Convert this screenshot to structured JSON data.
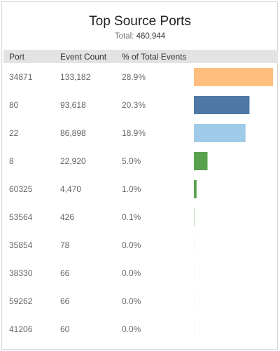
{
  "title": "Top Source Ports",
  "subtitle": {
    "label": "Total:",
    "value": "460,944"
  },
  "columns": [
    "Port",
    "Event Count",
    "% of Total Events"
  ],
  "chart_data": {
    "type": "bar",
    "title": "Top Source Ports",
    "total": 460944,
    "rows": [
      {
        "port": "34871",
        "count": "133,182",
        "pct_text": "28.9%",
        "value": 133182,
        "color": "#ffbe7d"
      },
      {
        "port": "80",
        "count": "93,618",
        "pct_text": "20.3%",
        "value": 93618,
        "color": "#4e79a7"
      },
      {
        "port": "22",
        "count": "86,898",
        "pct_text": "18.9%",
        "value": 86898,
        "color": "#a0cbe8"
      },
      {
        "port": "8",
        "count": "22,920",
        "pct_text": "5.0%",
        "value": 22920,
        "color": "#59a14f"
      },
      {
        "port": "60325",
        "count": "4,470",
        "pct_text": "1.0%",
        "value": 4470,
        "color": "#59a14f"
      },
      {
        "port": "53564",
        "count": "426",
        "pct_text": "0.1%",
        "value": 426,
        "color": "#59a14f"
      },
      {
        "port": "35854",
        "count": "78",
        "pct_text": "0.0%",
        "value": 78,
        "color": "#59a14f"
      },
      {
        "port": "38330",
        "count": "66",
        "pct_text": "0.0%",
        "value": 66,
        "color": "#59a14f"
      },
      {
        "port": "59262",
        "count": "66",
        "pct_text": "0.0%",
        "value": 66,
        "color": "#59a14f"
      },
      {
        "port": "41206",
        "count": "60",
        "pct_text": "0.0%",
        "value": 60,
        "color": "#59a14f"
      }
    ]
  }
}
